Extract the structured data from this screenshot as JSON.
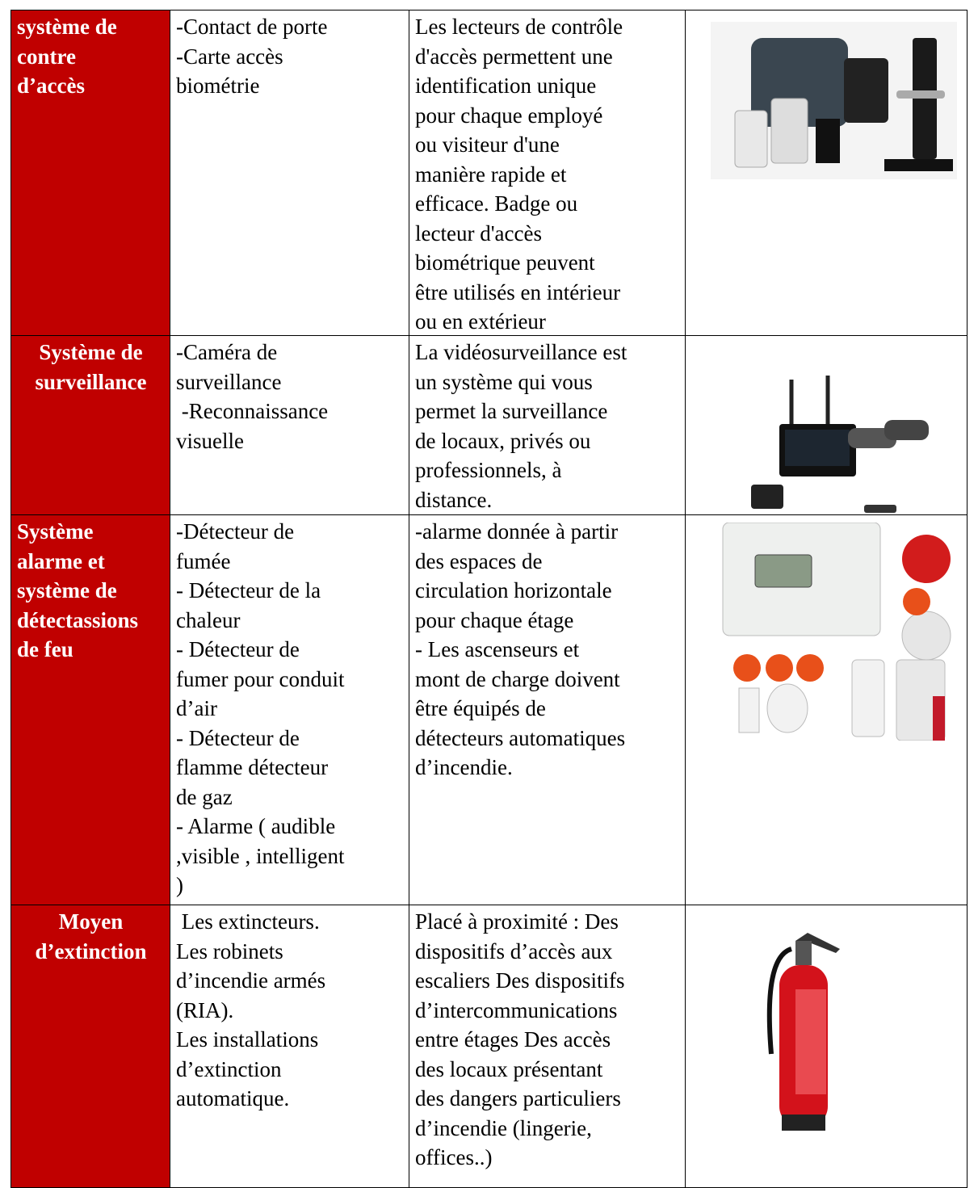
{
  "table": {
    "rows": [
      {
        "header": [
          "système de",
          "contre",
          "d’accès"
        ],
        "items": [
          "-Contact de porte",
          "-Carte accès",
          "biométrie"
        ],
        "description": [
          "Les lecteurs de contrôle",
          "d'accès permettent une",
          "identification unique",
          "pour chaque employé",
          "ou visiteur d'une",
          "manière rapide et",
          "efficace. Badge ou",
          "lecteur d'accès",
          "biométrique peuvent",
          "être utilisés en intérieur",
          "ou en extérieur"
        ]
      },
      {
        "header": [
          "Système de",
          "surveillance"
        ],
        "items": [
          "-Caméra de",
          "surveillance",
          " -Reconnaissance",
          "visuelle"
        ],
        "description": [
          "La vidéosurveillance est",
          "un système qui vous",
          "permet la surveillance",
          "de locaux, privés ou",
          "professionnels, à",
          "distance."
        ]
      },
      {
        "header": [
          "Système",
          "alarme et",
          "système de",
          "détectassions",
          "de feu"
        ],
        "items": [
          "-Détecteur de",
          "fumée",
          "- Détecteur de la",
          "chaleur",
          "- Détecteur de",
          "fumer pour conduit",
          "d’air",
          "- Détecteur de",
          "flamme détecteur",
          "de gaz",
          "- Alarme ( audible",
          ",visible , intelligent",
          ")"
        ],
        "description": [
          "-alarme donnée à partir",
          "des espaces de",
          "circulation horizontale",
          "pour chaque étage",
          "- Les ascenseurs et",
          "mont de charge doivent",
          "être équipés de",
          "détecteurs automatiques",
          "d’incendie."
        ]
      },
      {
        "header": [
          "Moyen",
          "d’extinction"
        ],
        "items": [
          " Les extincteurs.",
          "Les robinets",
          "d’incendie armés",
          "(RIA).",
          "Les installations",
          "d’extinction",
          "automatique."
        ],
        "description": [
          "Placé à proximité : Des",
          "dispositifs d’accès aux",
          "escaliers Des dispositifs",
          "d’intercommunications",
          "entre étages Des accès",
          "des locaux présentant",
          "des dangers particuliers",
          "d’incendie (lingerie,",
          "offices..)"
        ]
      }
    ]
  }
}
